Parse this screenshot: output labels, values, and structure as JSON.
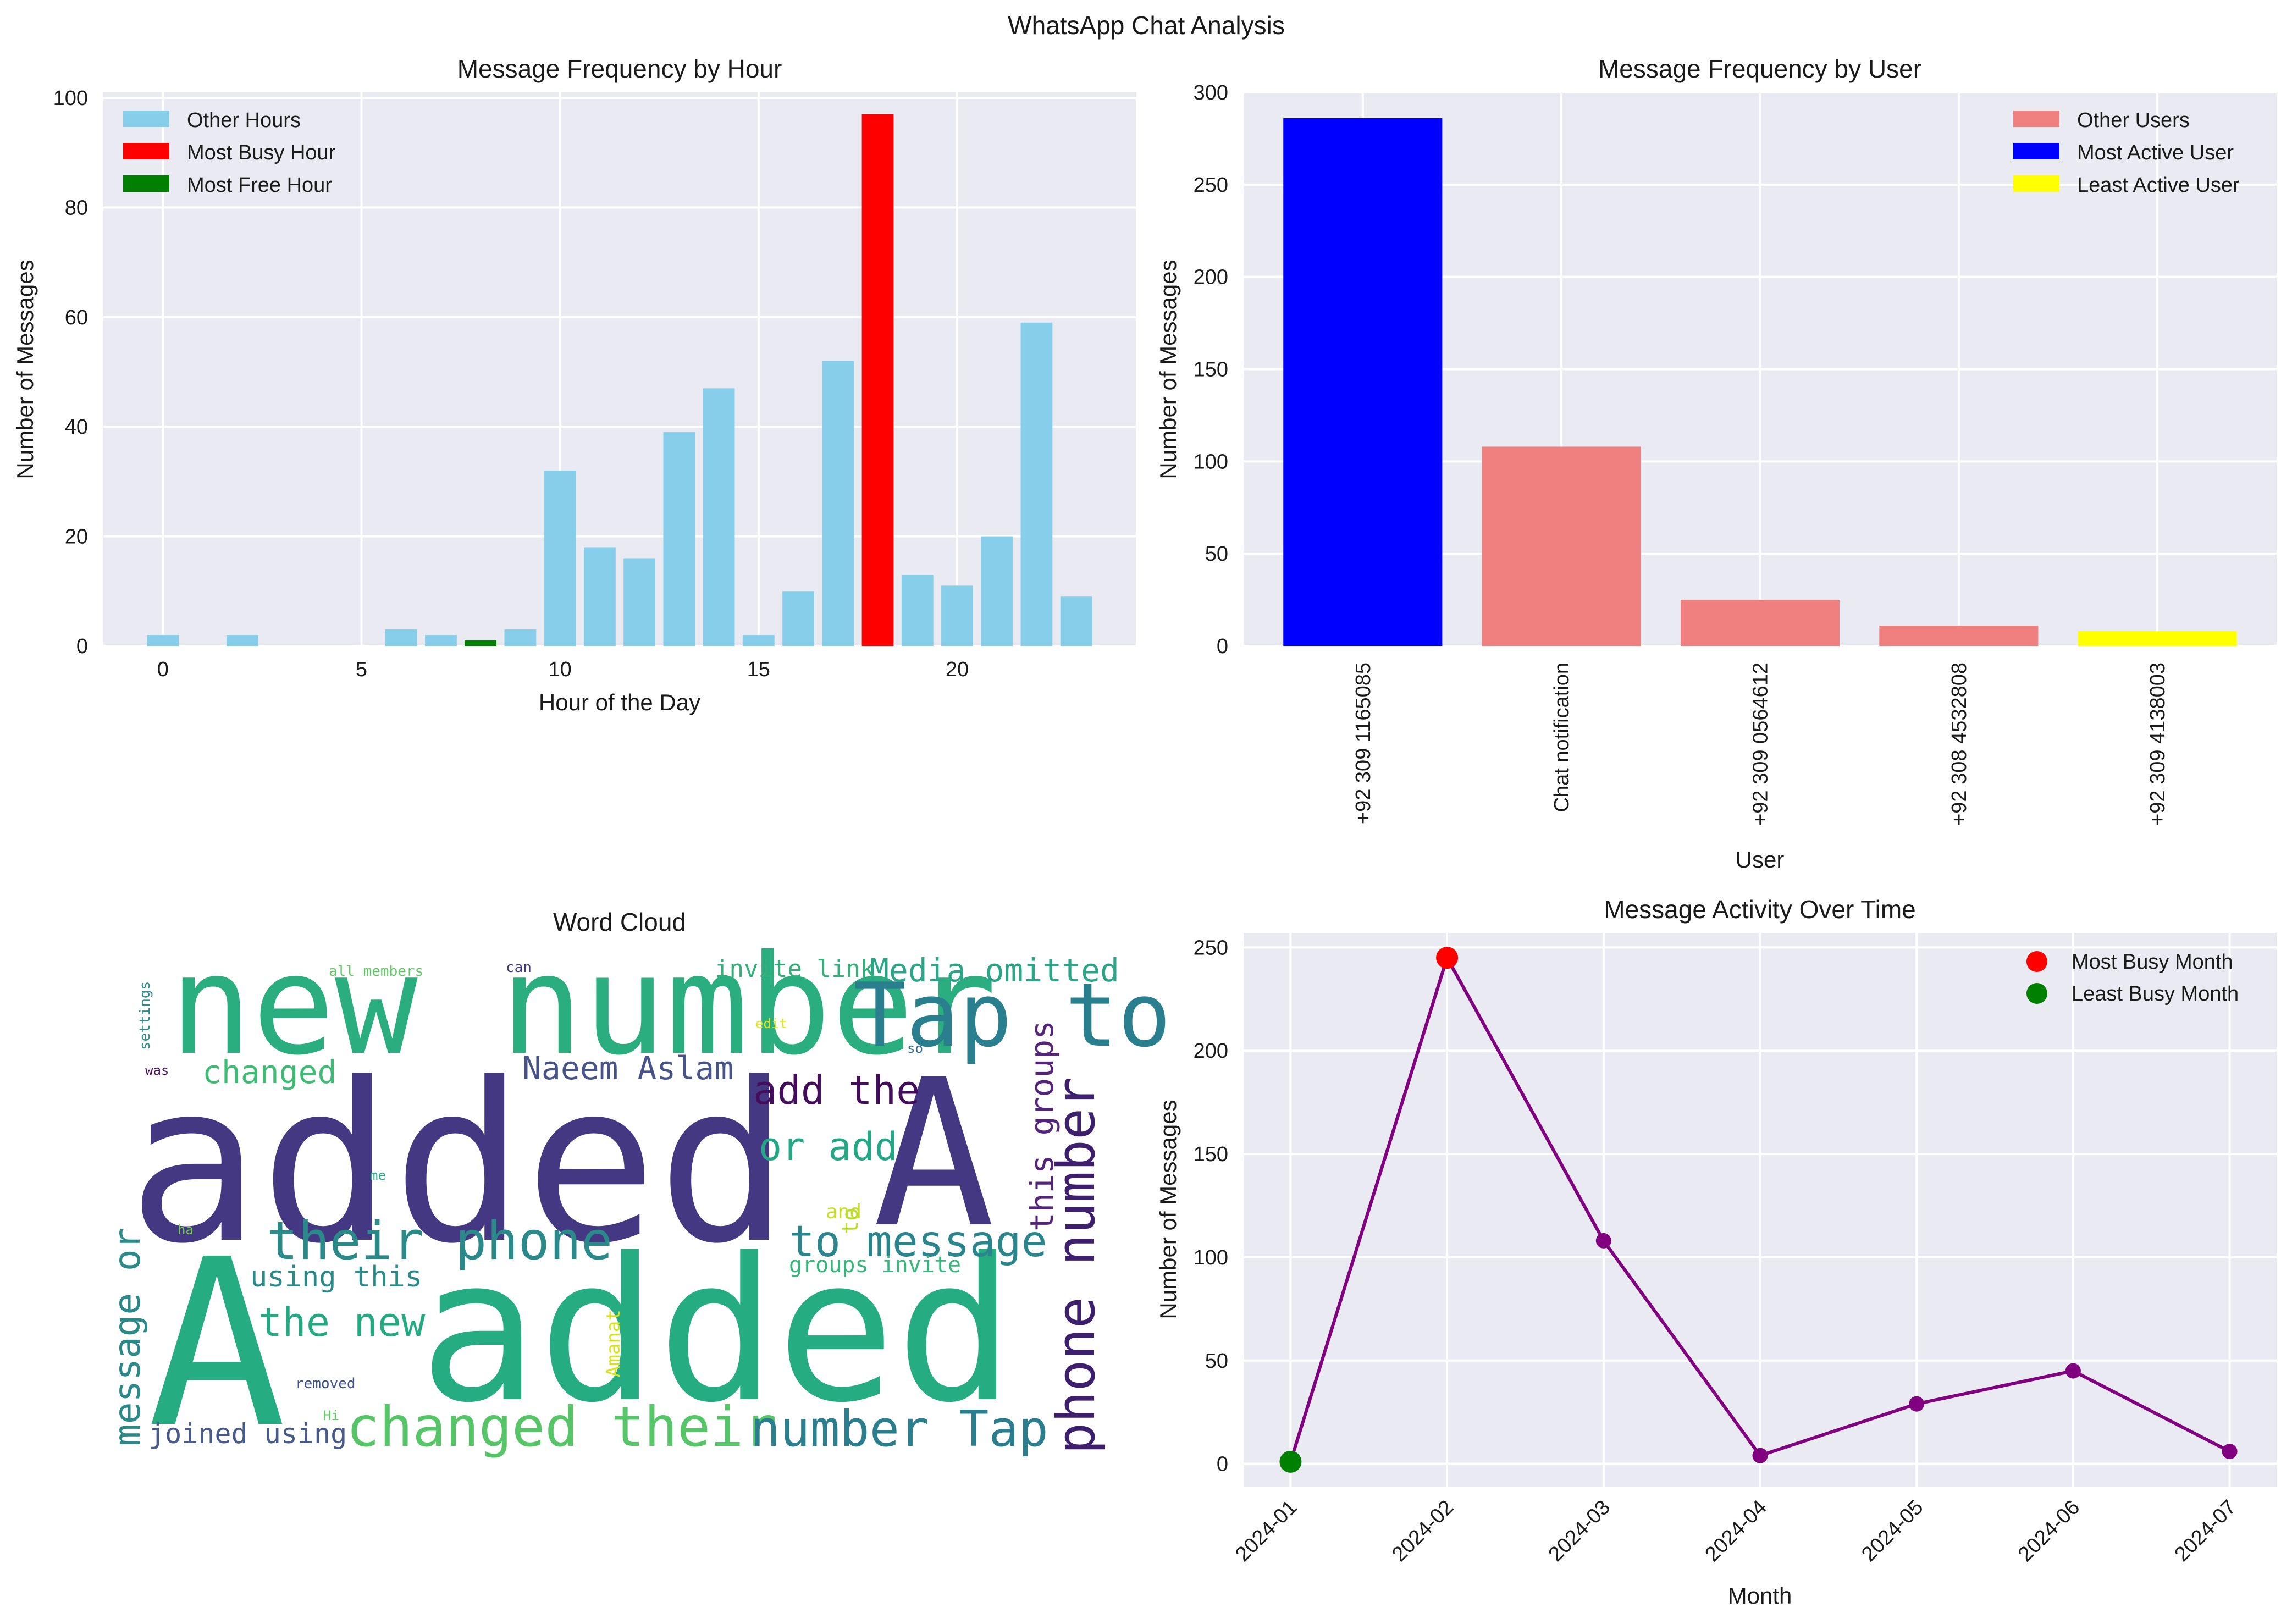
{
  "figure_title": "WhatsApp Chat Analysis",
  "chart_data": [
    {
      "id": "hour",
      "type": "bar",
      "title": "Message Frequency by Hour",
      "xlabel": "Hour of the Day",
      "ylabel": "Number of Messages",
      "xlim": [
        -1.5,
        24.5
      ],
      "ylim": [
        0,
        101
      ],
      "xticks": [
        0,
        5,
        10,
        15,
        20
      ],
      "yticks": [
        0,
        20,
        40,
        60,
        80,
        100
      ],
      "x": [
        0,
        2,
        6,
        7,
        8,
        9,
        10,
        11,
        12,
        13,
        14,
        15,
        16,
        17,
        18,
        19,
        20,
        21,
        22,
        23
      ],
      "values": [
        2,
        2,
        3,
        2,
        1,
        3,
        32,
        18,
        16,
        39,
        47,
        2,
        10,
        52,
        97,
        13,
        11,
        20,
        59,
        9
      ],
      "highlight": {
        "max_x": 18,
        "min_x": 8
      },
      "colors": {
        "other": "#87CEEB",
        "max": "#FF0000",
        "min": "#008000"
      },
      "legend": [
        "Other Hours",
        "Most Busy Hour",
        "Most Free Hour"
      ],
      "legend_position": "upper-left",
      "grid": true
    },
    {
      "id": "user",
      "type": "bar",
      "title": "Message Frequency by User",
      "xlabel": "User",
      "ylabel": "Number of Messages",
      "ylim": [
        0,
        300
      ],
      "yticks": [
        0,
        50,
        100,
        150,
        200,
        250,
        300
      ],
      "categories": [
        "+92 309 1165085",
        "Chat notification",
        "+92 309 0564612",
        "+92 308 4532808",
        "+92 309 4138003"
      ],
      "values": [
        286,
        108,
        25,
        11,
        8
      ],
      "bar_roles": [
        "max",
        "other",
        "other",
        "other",
        "min"
      ],
      "colors": {
        "other": "#F08080",
        "max": "#0000FF",
        "min": "#FFFF00"
      },
      "legend": [
        "Other Users",
        "Most Active User",
        "Least Active User"
      ],
      "legend_position": "upper-right",
      "grid": true
    },
    {
      "id": "time",
      "type": "line",
      "title": "Message Activity Over Time",
      "xlabel": "Month",
      "ylabel": "Number of Messages",
      "categories": [
        "2024-01",
        "2024-02",
        "2024-03",
        "2024-04",
        "2024-05",
        "2024-06",
        "2024-07"
      ],
      "values": [
        1,
        245,
        108,
        4,
        29,
        45,
        6
      ],
      "ylim": [
        -11,
        257
      ],
      "yticks": [
        0,
        50,
        100,
        150,
        200,
        250
      ],
      "highlight": {
        "max_index": 1,
        "min_index": 0
      },
      "colors": {
        "line": "#800080",
        "max": "#FF0000",
        "min": "#008000"
      },
      "legend": [
        "Most Busy Month",
        "Least Busy Month"
      ],
      "legend_position": "upper-right",
      "grid": true
    }
  ],
  "wordcloud": {
    "title": "Word Cloud",
    "words": [
      {
        "text": "new number",
        "color": "#2aae7f"
      },
      {
        "text": "Tap to",
        "color": "#2a7f8e"
      },
      {
        "text": "added",
        "color": "#453882"
      },
      {
        "text": "A",
        "color": "#453882"
      },
      {
        "text": "A",
        "color": "#26ac81"
      },
      {
        "text": "added",
        "color": "#26ac81"
      },
      {
        "text": "Media omitted",
        "color": "#2aa587"
      },
      {
        "text": "invite link",
        "color": "#33b07a"
      },
      {
        "text": "changed",
        "color": "#3fbc73"
      },
      {
        "text": "Naeem Aslam",
        "color": "#46548a"
      },
      {
        "text": "add the",
        "color": "#440d5b"
      },
      {
        "text": "or add",
        "color": "#24a784"
      },
      {
        "text": "phone number",
        "color": "#3e1f6e"
      },
      {
        "text": "this groups",
        "color": "#54247a"
      },
      {
        "text": "their phone",
        "color": "#2a8a8a"
      },
      {
        "text": "to message",
        "color": "#2a868c"
      },
      {
        "text": "using this",
        "color": "#2a8a8a"
      },
      {
        "text": "groups invite",
        "color": "#35b779"
      },
      {
        "text": "the new",
        "color": "#24aa83"
      },
      {
        "text": "message or",
        "color": "#2a8a8a"
      },
      {
        "text": "changed their",
        "color": "#56c567"
      },
      {
        "text": "number Tap",
        "color": "#2b7e8e"
      },
      {
        "text": "joined using",
        "color": "#465a8c"
      },
      {
        "text": "all members",
        "color": "#5ec962"
      },
      {
        "text": "can",
        "color": "#443a83"
      },
      {
        "text": "settings",
        "color": "#2b8c8c"
      },
      {
        "text": "edit",
        "color": "#e5e419"
      },
      {
        "text": "so",
        "color": "#31688e"
      },
      {
        "text": "was",
        "color": "#440d5b"
      },
      {
        "text": "me",
        "color": "#26a784"
      },
      {
        "text": "and",
        "color": "#c8e020"
      },
      {
        "text": "to",
        "color": "#b5de2b"
      },
      {
        "text": "ha",
        "color": "#7ad151"
      },
      {
        "text": "Amanat",
        "color": "#d8e219"
      },
      {
        "text": "removed",
        "color": "#3b528b"
      },
      {
        "text": "Hi",
        "color": "#5ec962"
      }
    ]
  }
}
